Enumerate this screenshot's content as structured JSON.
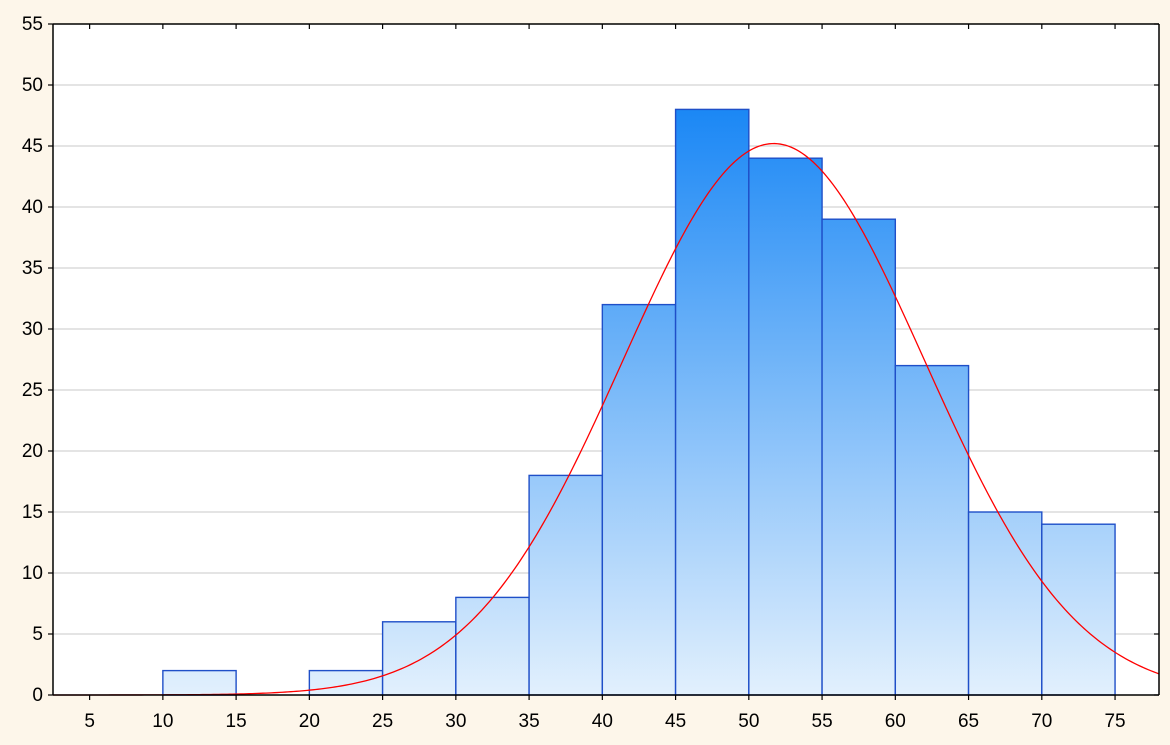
{
  "chart_data": {
    "type": "bar",
    "subtype": "histogram",
    "title": "",
    "xlabel": "",
    "ylabel": "",
    "xlim": [
      2.5,
      78
    ],
    "ylim": [
      0,
      55
    ],
    "x_ticks": [
      "5",
      "10",
      "15",
      "20",
      "25",
      "30",
      "35",
      "40",
      "45",
      "50",
      "55",
      "60",
      "65",
      "70",
      "75"
    ],
    "y_ticks": [
      "0",
      "5",
      "10",
      "15",
      "20",
      "25",
      "30",
      "35",
      "40",
      "45",
      "50",
      "55"
    ],
    "bins": [
      {
        "from": 5,
        "to": 10,
        "count": 0
      },
      {
        "from": 10,
        "to": 15,
        "count": 2
      },
      {
        "from": 15,
        "to": 20,
        "count": 0
      },
      {
        "from": 20,
        "to": 25,
        "count": 2
      },
      {
        "from": 25,
        "to": 30,
        "count": 6
      },
      {
        "from": 30,
        "to": 35,
        "count": 8
      },
      {
        "from": 35,
        "to": 40,
        "count": 18
      },
      {
        "from": 40,
        "to": 45,
        "count": 32
      },
      {
        "from": 45,
        "to": 50,
        "count": 48
      },
      {
        "from": 50,
        "to": 55,
        "count": 44
      },
      {
        "from": 55,
        "to": 60,
        "count": 39
      },
      {
        "from": 60,
        "to": 65,
        "count": 27
      },
      {
        "from": 65,
        "to": 70,
        "count": 15
      },
      {
        "from": 70,
        "to": 75,
        "count": 14
      }
    ],
    "fit_curve": {
      "type": "normal",
      "mean": 51.7,
      "sd": 10.3,
      "peak": 45.2,
      "color": "#ff0000"
    },
    "grid": true,
    "legend": "none",
    "colors": {
      "bar_top": "#1a87f5",
      "bar_bottom": "#e2f0fd",
      "bar_edge": "#1f4fc8",
      "background": "#fdf6ea",
      "plot_background": "#ffffff",
      "grid": "#c8c8c8"
    }
  }
}
